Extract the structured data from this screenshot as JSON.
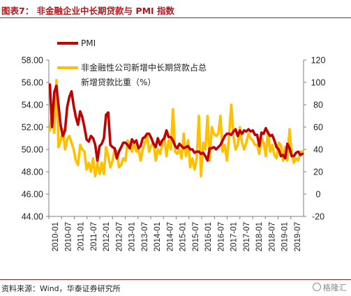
{
  "header": {
    "title": "图表7：  非金融企业中长期贷款与 PMI 指数"
  },
  "footer": {
    "source": "资料来源：Wind，华泰证券研究所",
    "watermark": "格隆汇"
  },
  "chart_data": {
    "type": "line",
    "x_tick_labels": [
      "2010-01",
      "2010-07",
      "2011-01",
      "2011-07",
      "2012-01",
      "2012-07",
      "2013-01",
      "2013-07",
      "2014-01",
      "2014-07",
      "2015-01",
      "2015-07",
      "2016-01",
      "2016-07",
      "2017-01",
      "2017-07",
      "2018-01",
      "2018-07",
      "2019-01",
      "2019-07"
    ],
    "y_left_ticks": [
      "44.00",
      "46.00",
      "48.00",
      "50.00",
      "52.00",
      "54.00",
      "56.00",
      "58.00"
    ],
    "y_right_ticks": [
      "-20",
      "0",
      "20",
      "40",
      "60",
      "80",
      "100",
      "120"
    ],
    "ylim_left": [
      44,
      58
    ],
    "ylim_right": [
      -20,
      120
    ],
    "legend_position": "top-left",
    "colors": {
      "pmi": "#c00000",
      "loans": "#ffc000"
    },
    "series": [
      {
        "key": "pmi",
        "name": "PMI",
        "axis": "left",
        "values": [
          55.8,
          52.0,
          55.1,
          55.7,
          53.9,
          52.1,
          51.2,
          51.7,
          53.8,
          54.7,
          55.2,
          53.9,
          52.9,
          52.2,
          53.4,
          52.9,
          52.0,
          50.9,
          50.7,
          51.2,
          51.0,
          50.4,
          49.0,
          50.3,
          50.5,
          51.0,
          53.1,
          53.3,
          50.4,
          50.2,
          50.1,
          49.2,
          49.8,
          50.2,
          50.6,
          50.6,
          50.4,
          50.1,
          50.9,
          50.6,
          50.8,
          50.1,
          50.3,
          51.0,
          51.1,
          51.4,
          51.4,
          51.0,
          50.5,
          50.2,
          51.0,
          50.4,
          50.8,
          51.0,
          51.7,
          51.1,
          51.1,
          50.8,
          50.3,
          50.1,
          50.5,
          50.3,
          50.1,
          50.2,
          50.3,
          50.0,
          50.0,
          49.7,
          49.8,
          49.8,
          49.6,
          49.7,
          49.4,
          49.0,
          50.1,
          50.1,
          50.2,
          50.0,
          50.2,
          50.4,
          50.8,
          51.2,
          51.4,
          51.4,
          51.3,
          51.6,
          51.8,
          51.2,
          51.7,
          51.4,
          51.7,
          51.6,
          51.8,
          51.6,
          51.7,
          51.3,
          51.3,
          50.3,
          51.5,
          51.4,
          51.9,
          51.5,
          51.2,
          51.3,
          50.8,
          50.2,
          50.0,
          49.4,
          49.5,
          49.2,
          50.5,
          50.1,
          49.4,
          49.4,
          49.7,
          49.8,
          49.5,
          49.6
        ]
      },
      {
        "key": "loans",
        "name": "非金融性公司新增中长期贷款占总新增贷款比重（%）",
        "axis": "right",
        "values": [
          57,
          72,
          55,
          102,
          42,
          48,
          58,
          40,
          49,
          52,
          46,
          40,
          30,
          26,
          44,
          40,
          38,
          22,
          28,
          20,
          32,
          16,
          28,
          18,
          28,
          18,
          42,
          34,
          24,
          30,
          40,
          38,
          24,
          26,
          32,
          30,
          48,
          44,
          38,
          46,
          38,
          40,
          30,
          40,
          46,
          52,
          38,
          44,
          46,
          30,
          40,
          36,
          44,
          52,
          34,
          48,
          40,
          76,
          38,
          36,
          40,
          32,
          54,
          34,
          48,
          24,
          32,
          22,
          32,
          70,
          16,
          46,
          40,
          70,
          30,
          60,
          54,
          52,
          54,
          70,
          38,
          44,
          30,
          52,
          80,
          52,
          40,
          44,
          60,
          46,
          40,
          46,
          54,
          50,
          48,
          44,
          44,
          36,
          50,
          46,
          34,
          56,
          38,
          44,
          35,
          32,
          46,
          44,
          30,
          42,
          30,
          58,
          36,
          28,
          32,
          30,
          38,
          38
        ]
      }
    ],
    "note": ""
  }
}
